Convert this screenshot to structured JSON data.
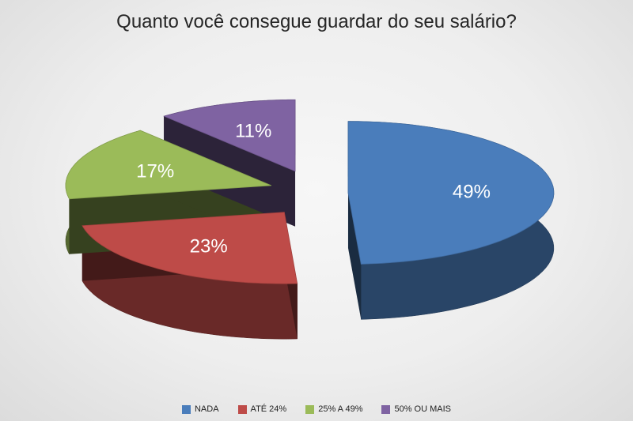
{
  "chart_data": {
    "type": "pie",
    "title": "Quanto você consegue guardar do seu salário?",
    "categories": [
      "NADA",
      "ATÉ 24%",
      "25% A 49%",
      "50% OU MAIS"
    ],
    "values": [
      49,
      23,
      17,
      11
    ],
    "labels": [
      "49%",
      "23%",
      "17%",
      "11%"
    ],
    "colors": [
      "#4a7dbb",
      "#be4b48",
      "#9bbb59",
      "#7f63a2"
    ],
    "legend_position": "bottom",
    "style": "3d-exploded"
  }
}
